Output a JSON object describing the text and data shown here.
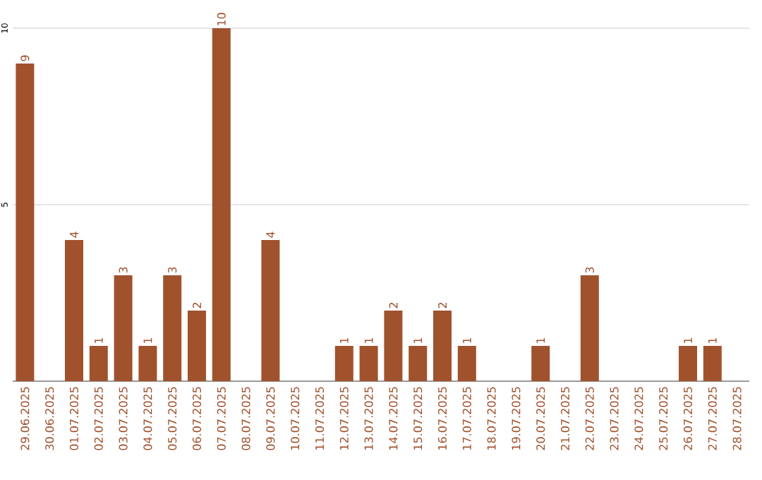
{
  "chart_data": {
    "type": "bar",
    "categories": [
      "29.06.2025",
      "30.06.2025",
      "01.07.2025",
      "02.07.2025",
      "03.07.2025",
      "04.07.2025",
      "05.07.2025",
      "06.07.2025",
      "07.07.2025",
      "08.07.2025",
      "09.07.2025",
      "10.07.2025",
      "11.07.2025",
      "12.07.2025",
      "13.07.2025",
      "14.07.2025",
      "15.07.2025",
      "16.07.2025",
      "17.07.2025",
      "18.07.2025",
      "19.07.2025",
      "20.07.2025",
      "21.07.2025",
      "22.07.2025",
      "23.07.2025",
      "24.07.2025",
      "25.07.2025",
      "26.07.2025",
      "27.07.2025",
      "28.07.2025"
    ],
    "values": [
      9,
      0,
      4,
      1,
      3,
      1,
      3,
      2,
      10,
      0,
      4,
      0,
      0,
      1,
      1,
      2,
      1,
      2,
      1,
      0,
      0,
      1,
      0,
      3,
      0,
      0,
      0,
      1,
      1,
      0
    ],
    "value_labels": [
      "9",
      null,
      "4",
      "1",
      "3",
      "1",
      "3",
      "2",
      "10",
      null,
      "4",
      null,
      null,
      "1",
      "1",
      "2",
      "1",
      "2",
      "1",
      null,
      null,
      "1",
      null,
      "3",
      null,
      null,
      null,
      "1",
      "1",
      null
    ],
    "color": "#a0522d",
    "ylim": [
      0,
      10
    ],
    "yticks": [
      5,
      10
    ],
    "grid": "y"
  }
}
